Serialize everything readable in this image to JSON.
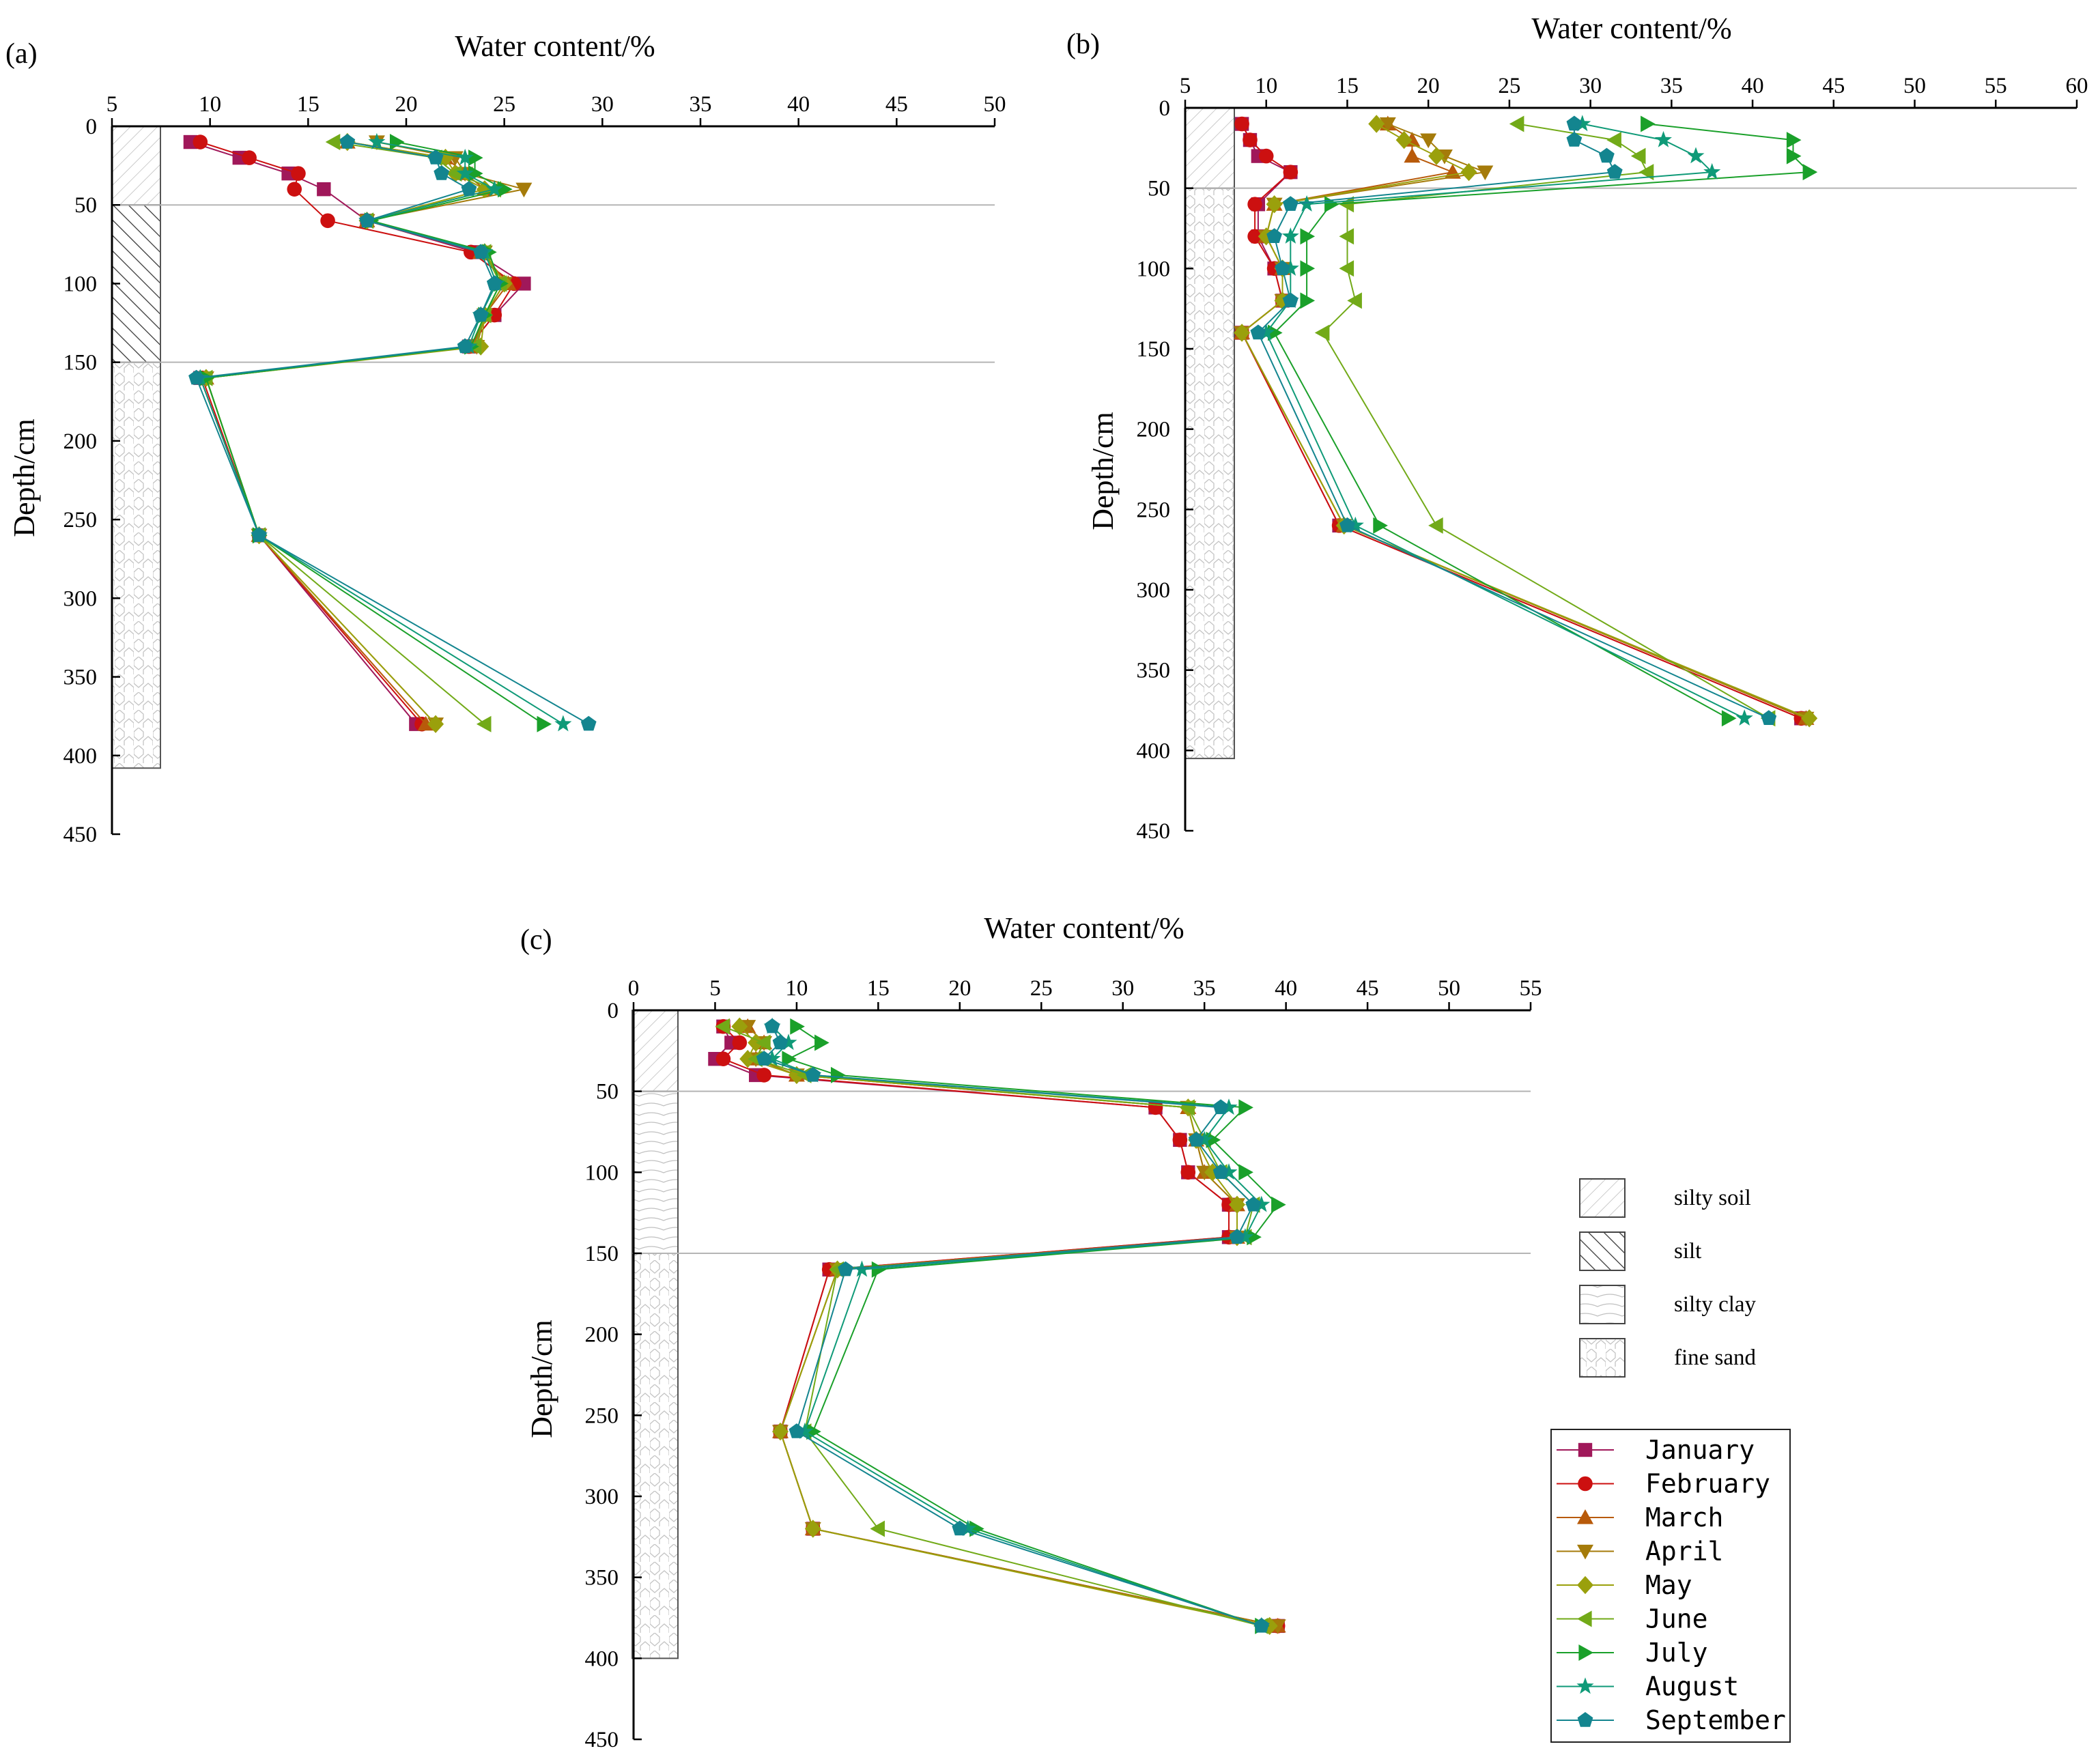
{
  "figure": {
    "soil_legend": [
      {
        "name": "silty soil",
        "pattern": "silty-soil"
      },
      {
        "name": "silt",
        "pattern": "silt"
      },
      {
        "name": "silty clay",
        "pattern": "silty-clay"
      },
      {
        "name": "fine sand",
        "pattern": "fine-sand"
      }
    ],
    "series_legend": [
      {
        "name": "January",
        "color": "#a0185a",
        "marker": "square"
      },
      {
        "name": "February",
        "color": "#cc1010",
        "marker": "circle"
      },
      {
        "name": "March",
        "color": "#b85a0a",
        "marker": "triangle-up"
      },
      {
        "name": "April",
        "color": "#a57b0a",
        "marker": "triangle-down"
      },
      {
        "name": "May",
        "color": "#9aa00c",
        "marker": "diamond"
      },
      {
        "name": "June",
        "color": "#72aa18",
        "marker": "triangle-left"
      },
      {
        "name": "July",
        "color": "#1aa02a",
        "marker": "triangle-right"
      },
      {
        "name": "August",
        "color": "#0f9a78",
        "marker": "star"
      },
      {
        "name": "September",
        "color": "#13858f",
        "marker": "pentagon"
      }
    ]
  },
  "chart_data": [
    {
      "panel_label": "(a)",
      "type": "line",
      "title": "",
      "xlabel": "Water content/%",
      "ylabel": "Depth/cm",
      "xlim": [
        5,
        50
      ],
      "xticks": [
        5,
        10,
        15,
        20,
        25,
        30,
        35,
        40,
        45,
        50
      ],
      "ylim": [
        0,
        450
      ],
      "yticks": [
        0,
        50,
        100,
        150,
        200,
        250,
        300,
        350,
        400,
        450
      ],
      "boundaries": [
        50,
        150
      ],
      "soil_layers": [
        {
          "from": 0,
          "to": 50,
          "soil": "silty soil"
        },
        {
          "from": 50,
          "to": 150,
          "soil": "silt"
        },
        {
          "from": 150,
          "to": 408,
          "soil": "fine sand"
        }
      ],
      "depths": [
        10,
        20,
        30,
        40,
        60,
        80,
        100,
        120,
        140,
        160,
        260,
        380
      ],
      "series": [
        {
          "name": "January",
          "values": [
            9.0,
            11.5,
            14.0,
            15.8,
            18.0,
            23.5,
            26.0,
            24.5,
            23.2,
            9.5,
            12.5,
            20.5
          ]
        },
        {
          "name": "February",
          "values": [
            9.5,
            12.0,
            14.5,
            14.3,
            16.0,
            23.3,
            25.5,
            24.5,
            23.2,
            9.6,
            12.5,
            20.8
          ]
        },
        {
          "name": "March",
          "values": [
            17.0,
            22.0,
            23.0,
            24.0,
            18.0,
            23.8,
            25.2,
            24.0,
            23.4,
            9.8,
            12.5,
            21.0
          ]
        },
        {
          "name": "April",
          "values": [
            18.5,
            22.5,
            23.0,
            26.0,
            18.0,
            24.0,
            25.0,
            24.0,
            23.6,
            9.8,
            12.5,
            21.5
          ]
        },
        {
          "name": "May",
          "values": [
            17.0,
            22.0,
            22.5,
            24.0,
            18.0,
            24.0,
            25.0,
            24.0,
            23.8,
            9.8,
            12.5,
            21.5
          ]
        },
        {
          "name": "June",
          "values": [
            16.3,
            21.5,
            22.5,
            24.5,
            18.0,
            24.0,
            24.8,
            24.0,
            23.5,
            9.8,
            12.5,
            24.0
          ]
        },
        {
          "name": "July",
          "values": [
            19.5,
            23.5,
            23.5,
            25.0,
            18.2,
            24.2,
            24.8,
            24.0,
            23.3,
            9.8,
            12.5,
            27.0
          ]
        },
        {
          "name": "August",
          "values": [
            18.5,
            23.0,
            23.0,
            24.5,
            18.0,
            24.0,
            24.6,
            23.8,
            23.2,
            9.5,
            12.5,
            28.0
          ]
        },
        {
          "name": "September",
          "values": [
            17.0,
            21.5,
            21.8,
            23.2,
            18.0,
            23.8,
            24.5,
            23.8,
            23.0,
            9.3,
            12.5,
            29.3
          ]
        }
      ]
    },
    {
      "panel_label": "(b)",
      "type": "line",
      "title": "",
      "xlabel": "Water content/%",
      "ylabel": "Depth/cm",
      "xlim": [
        5,
        60
      ],
      "xticks": [
        5,
        10,
        15,
        20,
        25,
        30,
        35,
        40,
        45,
        50,
        55,
        60
      ],
      "ylim": [
        0,
        450
      ],
      "yticks": [
        0,
        50,
        100,
        150,
        200,
        250,
        300,
        350,
        400,
        450
      ],
      "boundaries": [
        50
      ],
      "soil_layers": [
        {
          "from": 0,
          "to": 50,
          "soil": "silty soil"
        },
        {
          "from": 50,
          "to": 405,
          "soil": "fine sand"
        }
      ],
      "depths": [
        10,
        20,
        30,
        40,
        60,
        80,
        100,
        120,
        140,
        260,
        380
      ],
      "series": [
        {
          "name": "January",
          "values": [
            8.5,
            9.0,
            9.5,
            11.5,
            9.5,
            9.5,
            10.5,
            11.0,
            8.5,
            14.5,
            43.0
          ]
        },
        {
          "name": "February",
          "values": [
            8.5,
            9.0,
            10.0,
            11.5,
            9.3,
            9.3,
            10.5,
            11.0,
            8.5,
            14.5,
            43.0
          ]
        },
        {
          "name": "March",
          "values": [
            17.5,
            19.0,
            19.0,
            21.5,
            10.5,
            10.0,
            11.0,
            11.0,
            8.5,
            14.8,
            43.3
          ]
        },
        {
          "name": "April",
          "values": [
            17.5,
            20.0,
            21.0,
            23.5,
            10.5,
            10.0,
            11.0,
            11.0,
            8.5,
            14.8,
            43.3
          ]
        },
        {
          "name": "May",
          "values": [
            16.8,
            18.5,
            20.5,
            22.5,
            10.5,
            10.0,
            11.0,
            11.0,
            8.5,
            14.8,
            43.5
          ]
        },
        {
          "name": "June",
          "values": [
            25.5,
            31.5,
            33.0,
            33.5,
            15.0,
            15.0,
            15.0,
            15.5,
            13.5,
            20.5,
            41.0
          ]
        },
        {
          "name": "July",
          "values": [
            33.5,
            42.5,
            42.5,
            43.5,
            14.0,
            12.5,
            12.5,
            12.5,
            10.5,
            17.0,
            38.5
          ]
        },
        {
          "name": "August",
          "values": [
            29.5,
            34.5,
            36.5,
            37.5,
            12.5,
            11.5,
            11.5,
            11.5,
            10.0,
            15.5,
            39.5
          ]
        },
        {
          "name": "September",
          "values": [
            29.0,
            29.0,
            31.0,
            31.5,
            11.5,
            10.5,
            11.0,
            11.5,
            9.5,
            15.0,
            41.0
          ]
        }
      ]
    },
    {
      "panel_label": "(c)",
      "type": "line",
      "title": "",
      "xlabel": "Water content/%",
      "ylabel": "Depth/cm",
      "xlim": [
        0,
        55
      ],
      "xticks": [
        0,
        5,
        10,
        15,
        20,
        25,
        30,
        35,
        40,
        45,
        50,
        55
      ],
      "ylim": [
        0,
        450
      ],
      "yticks": [
        0,
        50,
        100,
        150,
        200,
        250,
        300,
        350,
        400,
        450
      ],
      "boundaries": [
        50,
        150
      ],
      "soil_layers": [
        {
          "from": 0,
          "to": 50,
          "soil": "silty soil"
        },
        {
          "from": 50,
          "to": 150,
          "soil": "silty clay"
        },
        {
          "from": 150,
          "to": 400,
          "soil": "fine sand"
        }
      ],
      "depths": [
        10,
        20,
        30,
        40,
        60,
        80,
        100,
        120,
        140,
        160,
        260,
        320,
        380
      ],
      "series": [
        {
          "name": "January",
          "values": [
            5.5,
            6.0,
            5.0,
            7.5,
            32.0,
            33.5,
            34.0,
            36.5,
            36.5,
            12.0,
            9.0,
            11.0,
            39.5
          ]
        },
        {
          "name": "February",
          "values": [
            5.5,
            6.5,
            5.5,
            8.0,
            32.0,
            33.5,
            34.0,
            36.5,
            36.5,
            12.0,
            9.0,
            11.0,
            39.5
          ]
        },
        {
          "name": "March",
          "values": [
            7.0,
            8.0,
            7.5,
            10.0,
            34.0,
            34.5,
            35.0,
            37.0,
            37.0,
            12.5,
            9.0,
            11.0,
            39.5
          ]
        },
        {
          "name": "April",
          "values": [
            7.0,
            8.0,
            7.5,
            10.0,
            34.0,
            34.5,
            35.0,
            37.0,
            37.0,
            12.5,
            9.0,
            11.0,
            39.5
          ]
        },
        {
          "name": "May",
          "values": [
            6.5,
            7.5,
            7.0,
            10.0,
            34.0,
            34.5,
            35.5,
            37.0,
            37.0,
            12.5,
            9.0,
            11.0,
            39.0
          ]
        },
        {
          "name": "June",
          "values": [
            5.5,
            8.0,
            7.5,
            10.5,
            34.0,
            35.0,
            36.0,
            38.0,
            37.5,
            12.5,
            10.5,
            15.0,
            38.5
          ]
        },
        {
          "name": "July",
          "values": [
            10.0,
            11.5,
            9.5,
            12.5,
            37.5,
            35.5,
            37.5,
            39.5,
            38.0,
            15.0,
            11.0,
            21.0,
            38.5
          ]
        },
        {
          "name": "August",
          "values": [
            8.5,
            9.5,
            8.5,
            11.0,
            36.5,
            35.0,
            36.5,
            38.5,
            37.5,
            14.0,
            10.5,
            20.5,
            38.5
          ]
        },
        {
          "name": "September",
          "values": [
            8.5,
            9.0,
            8.0,
            11.0,
            36.0,
            34.5,
            36.0,
            38.0,
            37.0,
            13.0,
            10.0,
            20.0,
            38.5
          ]
        }
      ]
    }
  ]
}
